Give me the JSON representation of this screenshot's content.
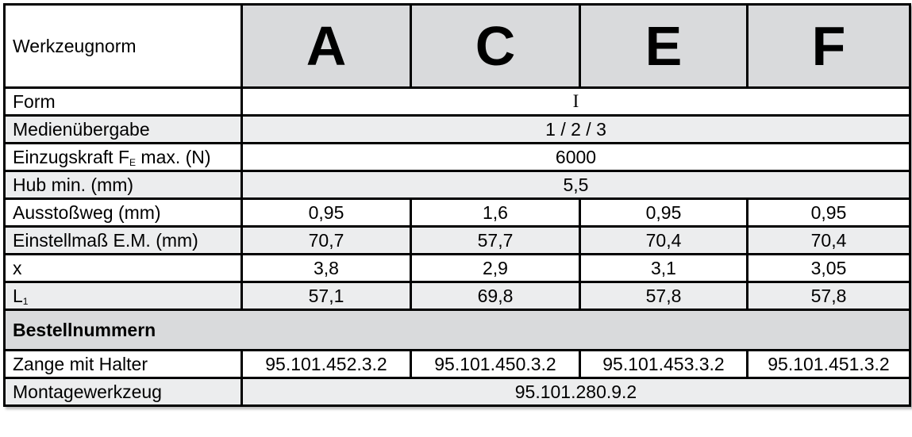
{
  "header": {
    "label": "Werkzeugnorm",
    "columns": [
      "A",
      "C",
      "E",
      "F"
    ]
  },
  "rows": {
    "form": {
      "label": "Form",
      "value": "I"
    },
    "medien": {
      "label": "Medienübergabe",
      "value": "1 / 2 / 3"
    },
    "einzug": {
      "label": "Einzugskraft F",
      "sub": "E",
      "label_suffix": " max. (N)",
      "value": "6000"
    },
    "hub": {
      "label": "Hub min. (mm)",
      "value": "5,5"
    },
    "ausstoss": {
      "label": "Ausstoßweg (mm)",
      "values": [
        "0,95",
        "1,6",
        "0,95",
        "0,95"
      ]
    },
    "einstell": {
      "label": "Einstellmaß E.M. (mm)",
      "values": [
        "70,7",
        "57,7",
        "70,4",
        "70,4"
      ]
    },
    "x": {
      "label": "x",
      "values": [
        "3,8",
        "2,9",
        "3,1",
        "3,05"
      ]
    },
    "l1": {
      "label": "L",
      "sub": "1",
      "values": [
        "57,1",
        "69,8",
        "57,8",
        "57,8"
      ]
    }
  },
  "section": {
    "title": "Bestellnummern"
  },
  "orders": {
    "zange": {
      "label": "Zange mit Halter",
      "values": [
        "95.101.452.3.2",
        "95.101.450.3.2",
        "95.101.453.3.2",
        "95.101.451.3.2"
      ]
    },
    "montage": {
      "label": "Montagewerkzeug",
      "value": "95.101.280.9.2"
    }
  },
  "colors": {
    "header_fill": "#d9dadc",
    "alt_row_fill": "#ecedee",
    "border": "#000000"
  }
}
